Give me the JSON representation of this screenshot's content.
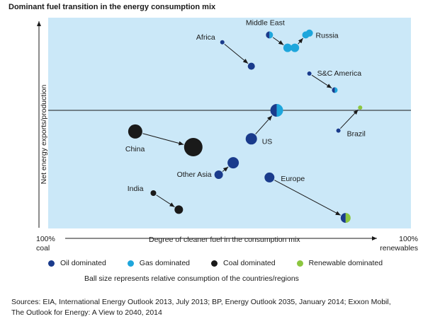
{
  "chart_data": {
    "type": "scatter",
    "title": "Dominant fuel transition in the energy consumption mix",
    "xlabel": "Degree of cleaner fuel in the consumption mix",
    "x_left_label": [
      "100%",
      "coal"
    ],
    "x_right_label": [
      "100%",
      "renewables"
    ],
    "ylabel": "Net energy exports/production",
    "legend": [
      {
        "name": "Oil dominated",
        "color": "#1a3b8c"
      },
      {
        "name": "Gas dominated",
        "color": "#1ea6dc"
      },
      {
        "name": "Coal dominated",
        "color": "#1a1a1a"
      },
      {
        "name": "Renewable dominated",
        "color": "#8cc63f"
      }
    ],
    "note": "Ball size represents relative consumption of the countries/regions",
    "x_range": [
      0,
      100
    ],
    "y_range": [
      -100,
      100
    ],
    "transitions": [
      {
        "label": "Middle East",
        "from": {
          "x": 61,
          "y": 82,
          "size": 5,
          "fuels": [
            "Oil dominated",
            "Gas dominated"
          ]
        },
        "to": {
          "x": 66,
          "y": 68,
          "size": 6,
          "fuels": [
            "Gas dominated"
          ]
        },
        "extra": {
          "x": 72,
          "y": 84,
          "size": 5,
          "fuels": [
            "Gas dominated"
          ]
        }
      },
      {
        "label": "Russia",
        "from": {
          "x": 68,
          "y": 68,
          "size": 6,
          "fuels": [
            "Gas dominated"
          ]
        },
        "to": {
          "x": 71,
          "y": 82,
          "size": 5,
          "fuels": [
            "Gas dominated"
          ]
        }
      },
      {
        "label": "Africa",
        "from": {
          "x": 48,
          "y": 74,
          "size": 3,
          "fuels": [
            "Oil dominated"
          ]
        },
        "to": {
          "x": 56,
          "y": 48,
          "size": 5,
          "fuels": [
            "Oil dominated"
          ]
        }
      },
      {
        "label": "S&C America",
        "from": {
          "x": 72,
          "y": 40,
          "size": 3,
          "fuels": [
            "Oil dominated"
          ]
        },
        "to": {
          "x": 79,
          "y": 22,
          "size": 4,
          "fuels": [
            "Oil dominated",
            "Gas dominated"
          ]
        }
      },
      {
        "label": "Brazil",
        "from": {
          "x": 80,
          "y": -22,
          "size": 3,
          "fuels": [
            "Oil dominated"
          ]
        },
        "to": {
          "x": 86,
          "y": 3,
          "size": 3,
          "fuels": [
            "Renewable dominated"
          ]
        }
      },
      {
        "label": "US",
        "from": {
          "x": 56,
          "y": -31,
          "size": 8,
          "fuels": [
            "Oil dominated"
          ]
        },
        "to": {
          "x": 63,
          "y": 0,
          "size": 9,
          "fuels": [
            "Oil dominated",
            "Gas dominated"
          ]
        }
      },
      {
        "label": "China",
        "from": {
          "x": 24,
          "y": -23,
          "size": 10,
          "fuels": [
            "Coal dominated"
          ]
        },
        "to": {
          "x": 40,
          "y": -40,
          "size": 13,
          "fuels": [
            "Coal dominated"
          ]
        }
      },
      {
        "label": "Other Asia",
        "from": {
          "x": 47,
          "y": -70,
          "size": 6,
          "fuels": [
            "Oil dominated"
          ]
        },
        "to": {
          "x": 51,
          "y": -57,
          "size": 8,
          "fuels": [
            "Oil dominated"
          ]
        }
      },
      {
        "label": "Europe",
        "from": {
          "x": 61,
          "y": -73,
          "size": 7,
          "fuels": [
            "Oil dominated"
          ]
        },
        "to": {
          "x": 82,
          "y": -117,
          "size": 7,
          "fuels": [
            "Oil dominated",
            "Renewable dominated"
          ]
        }
      },
      {
        "label": "India",
        "from": {
          "x": 29,
          "y": -90,
          "size": 4,
          "fuels": [
            "Coal dominated"
          ]
        },
        "to": {
          "x": 36,
          "y": -108,
          "size": 6,
          "fuels": [
            "Coal dominated"
          ]
        }
      }
    ]
  },
  "sources": [
    "Sources: EIA, International Energy Outlook 2013, July 2013; BP, Energy Outlook 2035, January 2014; Exxon Mobil,",
    "The Outlook for Energy: A View to 2040, 2014"
  ]
}
